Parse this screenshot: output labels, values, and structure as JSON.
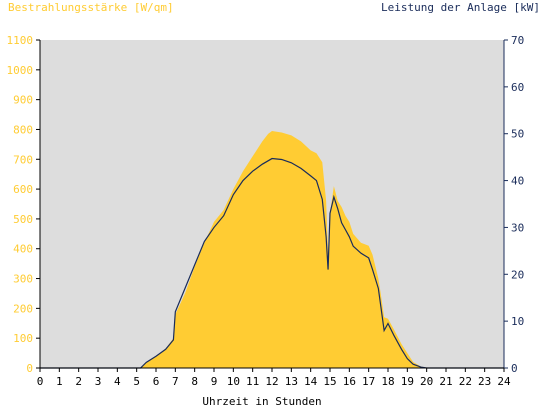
{
  "chart_data": {
    "type": "area",
    "title_left": "Bestrahlungsstärke [W/qm]",
    "title_right": "Leistung der Anlage [kW]",
    "xlabel": "Uhrzeit in Stunden",
    "x_ticks": [
      "0",
      "1",
      "2",
      "3",
      "4",
      "5",
      "6",
      "7",
      "8",
      "9",
      "10",
      "11",
      "12",
      "13",
      "14",
      "15",
      "16",
      "17",
      "18",
      "19",
      "20",
      "21",
      "22",
      "23",
      "24"
    ],
    "xlim": [
      0,
      24
    ],
    "y_left_ticks": [
      "0",
      "100",
      "200",
      "300",
      "400",
      "500",
      "600",
      "700",
      "800",
      "900",
      "1000",
      "1100"
    ],
    "ylim_left": [
      0,
      1100
    ],
    "y_right_ticks": [
      "0",
      "10",
      "20",
      "30",
      "40",
      "50",
      "60",
      "70"
    ],
    "ylim_right": [
      0,
      70
    ],
    "colors": {
      "plot_background": "#dddddd",
      "irradiance_fill": "#ffcc33",
      "power_line": "#1a2c5a",
      "left_axis_text": "#ffcc33",
      "right_axis_text": "#1a2c5a",
      "axis_text": "#000000"
    },
    "series": [
      {
        "axis": "left",
        "style": "area",
        "points": [
          [
            0,
            0
          ],
          [
            5.2,
            0
          ],
          [
            5.5,
            20
          ],
          [
            6,
            40
          ],
          [
            6.5,
            65
          ],
          [
            6.9,
            100
          ],
          [
            7,
            180
          ],
          [
            7.5,
            250
          ],
          [
            8,
            340
          ],
          [
            8.5,
            420
          ],
          [
            9,
            490
          ],
          [
            9.5,
            530
          ],
          [
            10,
            600
          ],
          [
            10.5,
            660
          ],
          [
            11,
            710
          ],
          [
            11.5,
            760
          ],
          [
            11.8,
            785
          ],
          [
            12,
            795
          ],
          [
            12.5,
            790
          ],
          [
            13,
            780
          ],
          [
            13.5,
            760
          ],
          [
            14,
            730
          ],
          [
            14.3,
            720
          ],
          [
            14.6,
            690
          ],
          [
            14.8,
            560
          ],
          [
            14.9,
            380
          ],
          [
            15,
            520
          ],
          [
            15.2,
            610
          ],
          [
            15.4,
            560
          ],
          [
            15.6,
            540
          ],
          [
            15.8,
            510
          ],
          [
            16,
            490
          ],
          [
            16.2,
            450
          ],
          [
            16.6,
            420
          ],
          [
            17,
            410
          ],
          [
            17.2,
            380
          ],
          [
            17.5,
            300
          ],
          [
            17.6,
            260
          ],
          [
            17.8,
            170
          ],
          [
            18,
            165
          ],
          [
            18.3,
            130
          ],
          [
            18.7,
            80
          ],
          [
            19,
            50
          ],
          [
            19.3,
            20
          ],
          [
            19.7,
            5
          ],
          [
            20,
            0
          ],
          [
            24,
            0
          ]
        ]
      },
      {
        "axis": "right",
        "style": "line",
        "points": [
          [
            0,
            0
          ],
          [
            5.2,
            0
          ],
          [
            5.5,
            1.2
          ],
          [
            6,
            2.5
          ],
          [
            6.5,
            4
          ],
          [
            6.9,
            6
          ],
          [
            7,
            12
          ],
          [
            7.5,
            17
          ],
          [
            8,
            22
          ],
          [
            8.5,
            27
          ],
          [
            9,
            30
          ],
          [
            9.5,
            32.5
          ],
          [
            10,
            37
          ],
          [
            10.5,
            40
          ],
          [
            11,
            42
          ],
          [
            11.5,
            43.5
          ],
          [
            12,
            44.7
          ],
          [
            12.5,
            44.5
          ],
          [
            13,
            43.8
          ],
          [
            13.5,
            42.6
          ],
          [
            14,
            41
          ],
          [
            14.3,
            40
          ],
          [
            14.6,
            36
          ],
          [
            14.8,
            28
          ],
          [
            14.9,
            21
          ],
          [
            15,
            33
          ],
          [
            15.2,
            36.5
          ],
          [
            15.4,
            34
          ],
          [
            15.6,
            31
          ],
          [
            15.8,
            29.5
          ],
          [
            16,
            28
          ],
          [
            16.2,
            26
          ],
          [
            16.6,
            24.5
          ],
          [
            17,
            23.5
          ],
          [
            17.2,
            21
          ],
          [
            17.5,
            17
          ],
          [
            17.6,
            14
          ],
          [
            17.8,
            8
          ],
          [
            18,
            9.5
          ],
          [
            18.3,
            7
          ],
          [
            18.7,
            4
          ],
          [
            19,
            2
          ],
          [
            19.3,
            0.8
          ],
          [
            19.7,
            0.2
          ],
          [
            20,
            0
          ],
          [
            24,
            0
          ]
        ]
      }
    ]
  }
}
